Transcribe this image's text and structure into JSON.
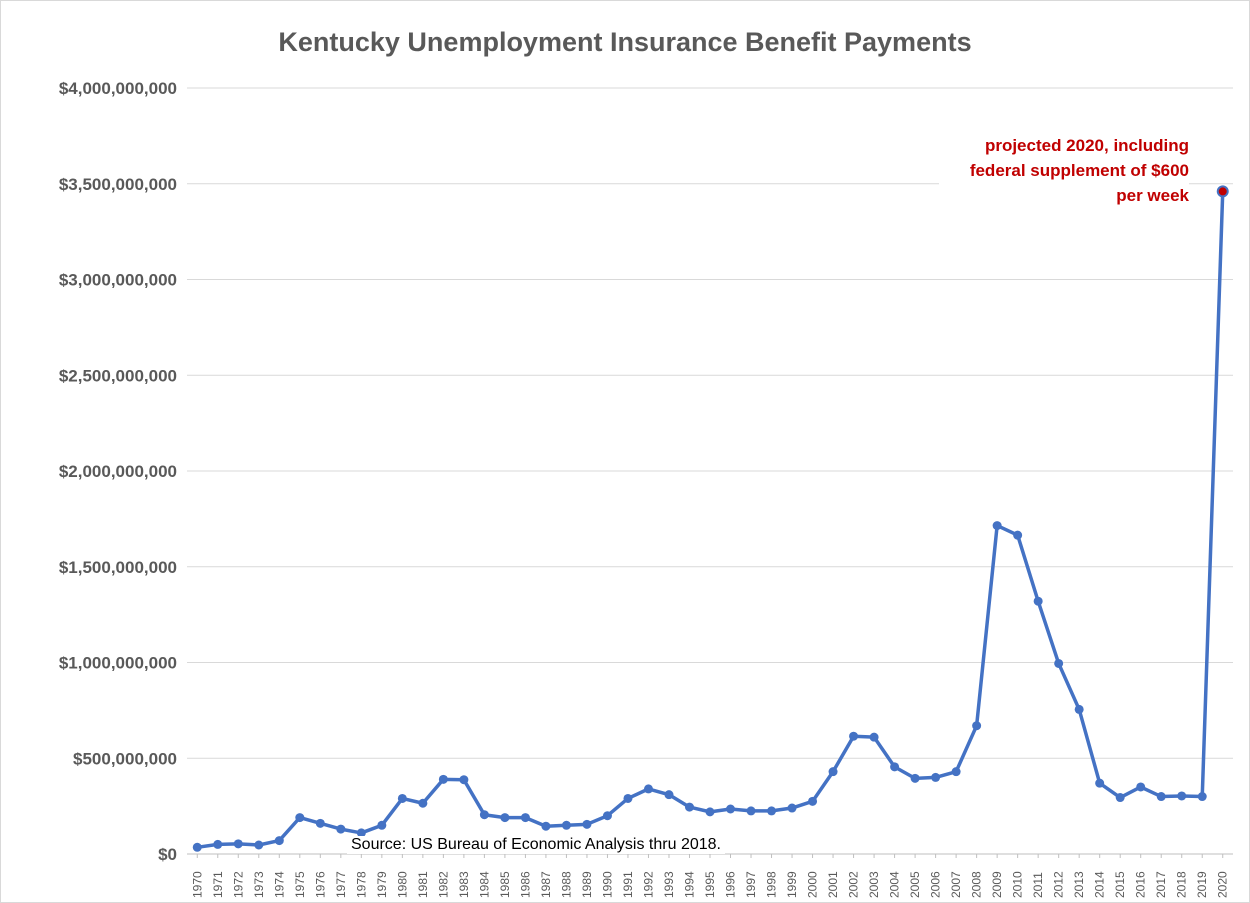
{
  "chart_data": {
    "type": "line",
    "title": "Kentucky Unemployment Insurance Benefit Payments",
    "xlabel": "",
    "ylabel": "",
    "ylim": [
      0,
      4000000000
    ],
    "y_ticks": [
      0,
      500000000,
      1000000000,
      1500000000,
      2000000000,
      2500000000,
      3000000000,
      3500000000,
      4000000000
    ],
    "y_tick_labels": [
      "$0",
      "$500,000,000",
      "$1,000,000,000",
      "$1,500,000,000",
      "$2,000,000,000",
      "$2,500,000,000",
      "$3,000,000,000",
      "$3,500,000,000",
      "$4,000,000,000"
    ],
    "grid": true,
    "categories": [
      "1970",
      "1971",
      "1972",
      "1973",
      "1974",
      "1975",
      "1976",
      "1977",
      "1978",
      "1979",
      "1980",
      "1981",
      "1982",
      "1983",
      "1984",
      "1985",
      "1986",
      "1987",
      "1988",
      "1989",
      "1990",
      "1991",
      "1992",
      "1993",
      "1994",
      "1995",
      "1996",
      "1997",
      "1998",
      "1999",
      "2000",
      "2001",
      "2002",
      "2003",
      "2004",
      "2005",
      "2006",
      "2007",
      "2008",
      "2009",
      "2010",
      "2011",
      "2012",
      "2013",
      "2014",
      "2015",
      "2016",
      "2017",
      "2018",
      "2019",
      "2020"
    ],
    "series": [
      {
        "name": "",
        "color": "#4472c4",
        "values": [
          35000000,
          50000000,
          53000000,
          47000000,
          70000000,
          190000000,
          160000000,
          130000000,
          110000000,
          150000000,
          290000000,
          265000000,
          390000000,
          388000000,
          205000000,
          190000000,
          190000000,
          145000000,
          150000000,
          155000000,
          200000000,
          290000000,
          340000000,
          310000000,
          245000000,
          220000000,
          235000000,
          225000000,
          225000000,
          240000000,
          275000000,
          430000000,
          615000000,
          610000000,
          455000000,
          395000000,
          400000000,
          430000000,
          670000000,
          1715000000,
          1665000000,
          1320000000,
          995000000,
          755000000,
          370000000,
          295000000,
          350000000,
          300000000,
          303000000,
          300000000,
          3460000000
        ]
      }
    ],
    "highlight_point": {
      "category": "2020",
      "value": 3460000000,
      "color": "#c00000"
    },
    "annotation": "projected 2020, including federal supplement of $600 per week",
    "source_note": "Source: US Bureau of Economic Analysis thru 2018."
  }
}
